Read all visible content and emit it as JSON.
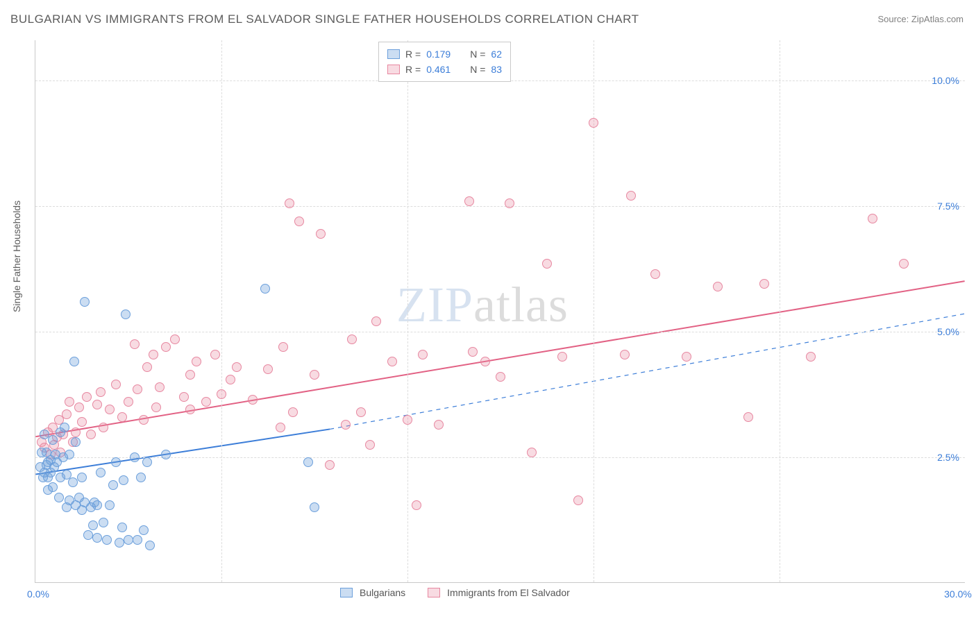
{
  "title": "BULGARIAN VS IMMIGRANTS FROM EL SALVADOR SINGLE FATHER HOUSEHOLDS CORRELATION CHART",
  "source": "Source: ZipAtlas.com",
  "ylabel": "Single Father Households",
  "watermark_zip": "ZIP",
  "watermark_atlas": "atlas",
  "chart": {
    "type": "scatter",
    "xlim": [
      0,
      30
    ],
    "ylim": [
      0,
      10.8
    ],
    "background_color": "#ffffff",
    "grid_color": "#dcdcdc",
    "axis_color": "#c9c9c9",
    "tick_color": "#3b7dd8",
    "tick_fontsize": 14,
    "point_radius": 7,
    "yticks": [
      {
        "v": 2.5,
        "label": "2.5%"
      },
      {
        "v": 5.0,
        "label": "5.0%"
      },
      {
        "v": 7.5,
        "label": "7.5%"
      },
      {
        "v": 10.0,
        "label": "10.0%"
      }
    ],
    "xticks": [
      {
        "v": 0,
        "label": "0.0%"
      },
      {
        "v": 30,
        "label": "30.0%"
      }
    ],
    "vgrids": [
      6,
      12,
      18,
      24
    ]
  },
  "series": {
    "bulgarians": {
      "label": "Bulgarians",
      "fill": "rgba(107,159,219,0.35)",
      "stroke": "#6b9fdb",
      "line_color": "#3b7dd8",
      "line_width": 2,
      "trend_solid": {
        "x1": 0,
        "y1": 2.15,
        "x2": 9.5,
        "y2": 3.05
      },
      "trend_dashed": {
        "x1": 9.5,
        "y1": 3.05,
        "x2": 30,
        "y2": 5.35
      },
      "R": "0.179",
      "N": "62",
      "points": [
        [
          0.15,
          2.3
        ],
        [
          0.2,
          2.6
        ],
        [
          0.25,
          2.1
        ],
        [
          0.3,
          2.2
        ],
        [
          0.3,
          2.95
        ],
        [
          0.35,
          2.35
        ],
        [
          0.35,
          2.6
        ],
        [
          0.4,
          2.4
        ],
        [
          0.4,
          2.1
        ],
        [
          0.4,
          1.85
        ],
        [
          0.5,
          2.2
        ],
        [
          0.5,
          2.45
        ],
        [
          0.55,
          2.85
        ],
        [
          0.55,
          1.9
        ],
        [
          0.6,
          2.3
        ],
        [
          0.65,
          2.55
        ],
        [
          0.7,
          2.4
        ],
        [
          0.75,
          1.7
        ],
        [
          0.8,
          2.1
        ],
        [
          0.8,
          3.0
        ],
        [
          0.9,
          2.5
        ],
        [
          0.95,
          3.1
        ],
        [
          1.0,
          2.15
        ],
        [
          1.0,
          1.5
        ],
        [
          1.1,
          1.65
        ],
        [
          1.1,
          2.55
        ],
        [
          1.2,
          2.0
        ],
        [
          1.25,
          4.4
        ],
        [
          1.3,
          1.55
        ],
        [
          1.3,
          2.8
        ],
        [
          1.4,
          1.7
        ],
        [
          1.5,
          2.1
        ],
        [
          1.5,
          1.45
        ],
        [
          1.6,
          1.6
        ],
        [
          1.6,
          5.6
        ],
        [
          1.7,
          0.95
        ],
        [
          1.8,
          1.5
        ],
        [
          1.85,
          1.15
        ],
        [
          1.9,
          1.6
        ],
        [
          2.0,
          1.55
        ],
        [
          2.0,
          0.9
        ],
        [
          2.1,
          2.2
        ],
        [
          2.2,
          1.2
        ],
        [
          2.3,
          0.85
        ],
        [
          2.4,
          1.55
        ],
        [
          2.5,
          1.95
        ],
        [
          2.6,
          2.4
        ],
        [
          2.7,
          0.8
        ],
        [
          2.8,
          1.1
        ],
        [
          2.85,
          2.05
        ],
        [
          2.9,
          5.35
        ],
        [
          3.0,
          0.85
        ],
        [
          3.2,
          2.5
        ],
        [
          3.3,
          0.85
        ],
        [
          3.4,
          2.1
        ],
        [
          3.5,
          1.05
        ],
        [
          3.6,
          2.4
        ],
        [
          3.7,
          0.75
        ],
        [
          4.2,
          2.55
        ],
        [
          7.4,
          5.85
        ],
        [
          8.8,
          2.4
        ],
        [
          9.0,
          1.5
        ]
      ]
    },
    "elsalvador": {
      "label": "Immigrants from El Salvador",
      "fill": "rgba(231,135,160,0.30)",
      "stroke": "#e787a0",
      "line_color": "#e26184",
      "line_width": 2,
      "trend_solid": {
        "x1": 0,
        "y1": 2.9,
        "x2": 30,
        "y2": 6.0
      },
      "R": "0.461",
      "N": "83",
      "points": [
        [
          0.2,
          2.8
        ],
        [
          0.3,
          2.7
        ],
        [
          0.4,
          3.0
        ],
        [
          0.5,
          2.55
        ],
        [
          0.55,
          3.1
        ],
        [
          0.6,
          2.75
        ],
        [
          0.7,
          2.9
        ],
        [
          0.75,
          3.25
        ],
        [
          0.8,
          2.6
        ],
        [
          0.9,
          2.95
        ],
        [
          1.0,
          3.35
        ],
        [
          1.1,
          3.6
        ],
        [
          1.2,
          2.8
        ],
        [
          1.3,
          3.0
        ],
        [
          1.4,
          3.5
        ],
        [
          1.5,
          3.2
        ],
        [
          1.65,
          3.7
        ],
        [
          1.8,
          2.95
        ],
        [
          2.0,
          3.55
        ],
        [
          2.1,
          3.8
        ],
        [
          2.2,
          3.1
        ],
        [
          2.4,
          3.45
        ],
        [
          2.6,
          3.95
        ],
        [
          2.8,
          3.3
        ],
        [
          3.0,
          3.6
        ],
        [
          3.2,
          4.75
        ],
        [
          3.3,
          3.85
        ],
        [
          3.5,
          3.25
        ],
        [
          3.6,
          4.3
        ],
        [
          3.8,
          4.55
        ],
        [
          3.9,
          3.5
        ],
        [
          4.0,
          3.9
        ],
        [
          4.2,
          4.7
        ],
        [
          4.5,
          4.85
        ],
        [
          4.8,
          3.7
        ],
        [
          5.0,
          4.15
        ],
        [
          5.0,
          3.45
        ],
        [
          5.2,
          4.4
        ],
        [
          5.5,
          3.6
        ],
        [
          5.8,
          4.55
        ],
        [
          6.0,
          3.75
        ],
        [
          6.3,
          4.05
        ],
        [
          6.5,
          4.3
        ],
        [
          7.0,
          3.65
        ],
        [
          7.5,
          4.25
        ],
        [
          7.9,
          3.1
        ],
        [
          8.0,
          4.7
        ],
        [
          8.2,
          7.55
        ],
        [
          8.3,
          3.4
        ],
        [
          8.5,
          7.2
        ],
        [
          9.0,
          4.15
        ],
        [
          9.2,
          6.95
        ],
        [
          9.5,
          2.35
        ],
        [
          10.0,
          3.15
        ],
        [
          10.2,
          4.85
        ],
        [
          10.5,
          3.4
        ],
        [
          10.8,
          2.75
        ],
        [
          11.0,
          5.2
        ],
        [
          11.5,
          4.4
        ],
        [
          12.0,
          3.25
        ],
        [
          12.3,
          1.55
        ],
        [
          12.5,
          4.55
        ],
        [
          13.0,
          3.15
        ],
        [
          14.0,
          7.6
        ],
        [
          14.1,
          4.6
        ],
        [
          14.5,
          4.4
        ],
        [
          15.0,
          4.1
        ],
        [
          15.3,
          7.55
        ],
        [
          16.0,
          2.6
        ],
        [
          16.5,
          6.35
        ],
        [
          17.0,
          4.5
        ],
        [
          17.5,
          1.65
        ],
        [
          18.0,
          9.15
        ],
        [
          19.0,
          4.55
        ],
        [
          19.2,
          7.7
        ],
        [
          20.0,
          6.15
        ],
        [
          21.0,
          4.5
        ],
        [
          22.0,
          5.9
        ],
        [
          23.0,
          3.3
        ],
        [
          23.5,
          5.95
        ],
        [
          25.0,
          4.5
        ],
        [
          27.0,
          7.25
        ],
        [
          28.0,
          6.35
        ]
      ]
    }
  },
  "legend_top": {
    "r_label": "R =",
    "n_label": "N ="
  },
  "legend_bottom": {
    "items": [
      "bulgarians",
      "elsalvador"
    ]
  }
}
